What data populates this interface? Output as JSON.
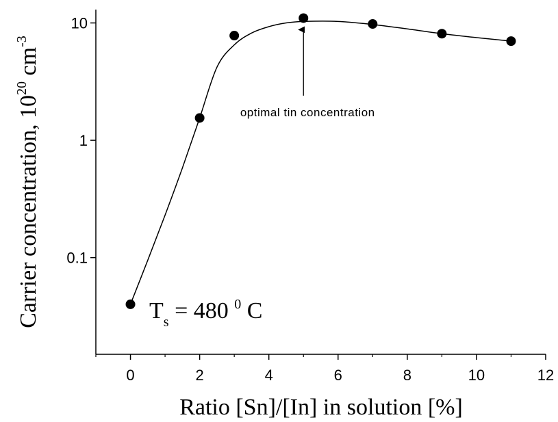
{
  "chart_data": {
    "type": "scatter",
    "xlabel": "Ratio [Sn]/[In] in solution [%]",
    "ylabel": {
      "main": "Carrier concentration, 10",
      "exp1": "20",
      "mid": " cm",
      "exp2": "-3"
    },
    "xlim": [
      -1,
      12
    ],
    "ylim": [
      0.015,
      13
    ],
    "yscale": "log",
    "x_ticks": [
      0,
      2,
      4,
      6,
      8,
      10,
      12
    ],
    "x_tick_labels": [
      "0",
      "2",
      "4",
      "6",
      "8",
      "10",
      "12"
    ],
    "y_ticks": [
      0.1,
      1,
      10
    ],
    "y_tick_labels": [
      "0.1",
      "1",
      "10"
    ],
    "series": [
      {
        "points": [
          {
            "x": 0,
            "y": 0.04
          },
          {
            "x": 2,
            "y": 1.55
          },
          {
            "x": 3,
            "y": 7.8
          },
          {
            "x": 5,
            "y": 11
          },
          {
            "x": 7,
            "y": 9.8
          },
          {
            "x": 9,
            "y": 8.1
          },
          {
            "x": 11,
            "y": 7
          }
        ],
        "fit_curve": [
          [
            0,
            0.04
          ],
          [
            0.5,
            0.095
          ],
          [
            1,
            0.23
          ],
          [
            1.5,
            0.58
          ],
          [
            2,
            1.55
          ],
          [
            2.5,
            4.2
          ],
          [
            3,
            6.5
          ],
          [
            3.5,
            8.2
          ],
          [
            4,
            9.3
          ],
          [
            4.5,
            10.0
          ],
          [
            5,
            10.3
          ],
          [
            6,
            10.3
          ],
          [
            7,
            9.7
          ],
          [
            8,
            8.9
          ],
          [
            9,
            8.1
          ],
          [
            10,
            7.5
          ],
          [
            11,
            7.0
          ]
        ]
      }
    ],
    "annotations": [
      {
        "text": "optimal tin concentration",
        "arrow_x": 5,
        "arrow_y_from": 2.4,
        "arrow_y_to": 9.5
      }
    ],
    "parameter_label": {
      "symbol": "T",
      "subscript": "s",
      "value": " = 480 ",
      "superscript": "0",
      "unit": " C"
    },
    "grid": false,
    "legend": "none",
    "marker_color": "#000000"
  }
}
